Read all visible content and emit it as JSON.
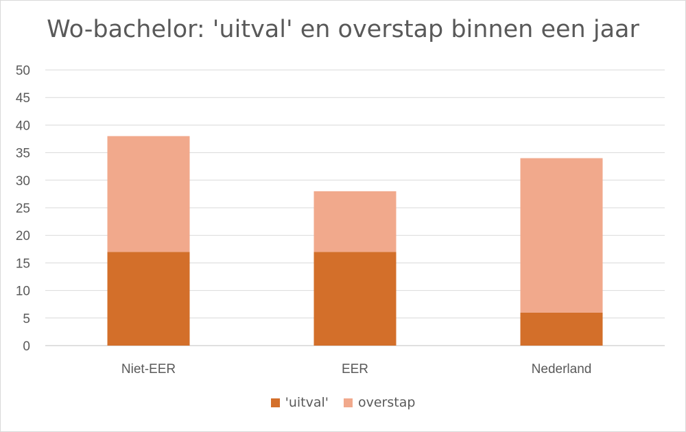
{
  "chart_data": {
    "type": "bar",
    "stacked": true,
    "title": "Wo-bachelor: 'uitval' en overstap binnen een jaar",
    "categories": [
      "Niet-EER",
      "EER",
      "Nederland"
    ],
    "series": [
      {
        "name": "'uitval'",
        "values": [
          17,
          17,
          6
        ],
        "color": "#d36f2a"
      },
      {
        "name": "overstap",
        "values": [
          21,
          11,
          28
        ],
        "color": "#f1a98c"
      }
    ],
    "ylim": [
      0,
      50
    ],
    "yticks": [
      0,
      5,
      10,
      15,
      20,
      25,
      30,
      35,
      40,
      45,
      50
    ],
    "grid": true,
    "legend_position": "bottom",
    "xlabel": "",
    "ylabel": ""
  }
}
